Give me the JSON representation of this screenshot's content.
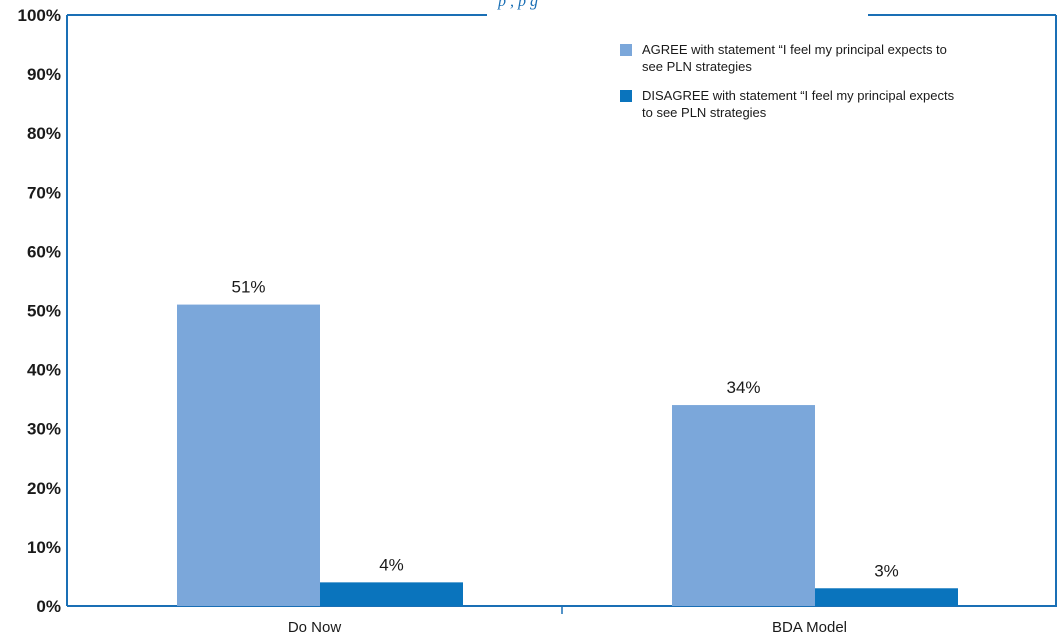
{
  "chart_data": {
    "type": "bar",
    "title_fragment": "p      , p  g",
    "categories": [
      "Do Now",
      "BDA Model"
    ],
    "ylim": [
      0,
      100
    ],
    "yticks": [
      "0%",
      "10%",
      "20%",
      "30%",
      "40%",
      "50%",
      "60%",
      "70%",
      "80%",
      "90%",
      "100%"
    ],
    "grid": false,
    "legend_position": "top-right",
    "series": [
      {
        "name_lines": [
          "AGREE with statement “I feel my principal expects to",
          "see PLN strategies"
        ],
        "values": [
          51,
          34
        ],
        "labels": [
          "51%",
          "34%"
        ],
        "color": "#7ba7da"
      },
      {
        "name_lines": [
          "DISAGREE with statement “I feel my principal expects",
          "to see PLN strategies"
        ],
        "values": [
          4,
          3
        ],
        "labels": [
          "4%",
          "3%"
        ],
        "color": "#0a74bd"
      }
    ],
    "axis_color": "#1a6fb5"
  }
}
